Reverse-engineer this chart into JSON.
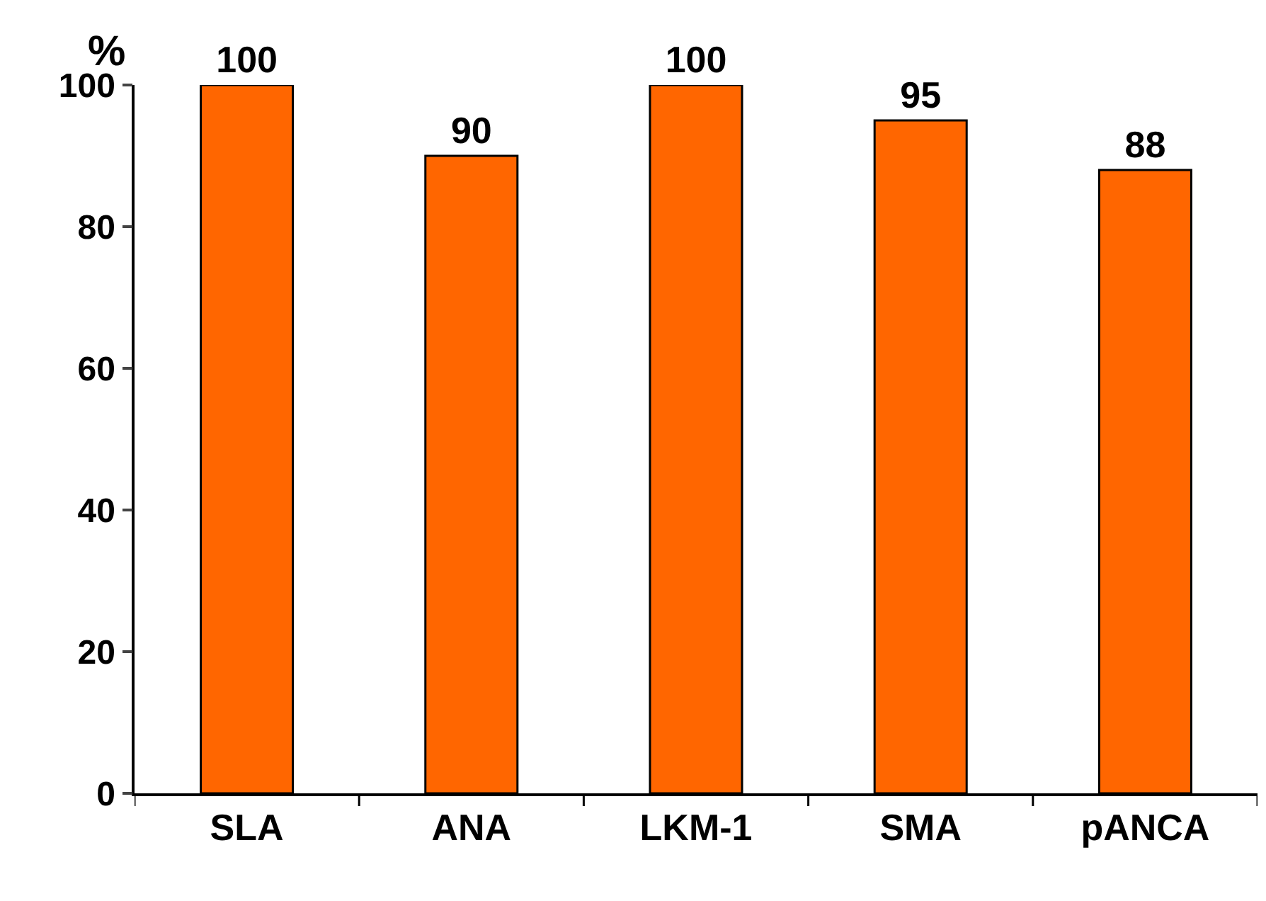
{
  "chart_data": {
    "type": "bar",
    "ylabel": "%",
    "categories": [
      "SLA",
      "ANA",
      "LKM-1",
      "SMA",
      "pANCA"
    ],
    "values": [
      100,
      90,
      100,
      95,
      88
    ],
    "color": "#ff6600",
    "ylim": [
      0,
      100
    ],
    "yticks": [
      0,
      20,
      40,
      60,
      80,
      100
    ],
    "data_labels": true,
    "grid": false
  }
}
